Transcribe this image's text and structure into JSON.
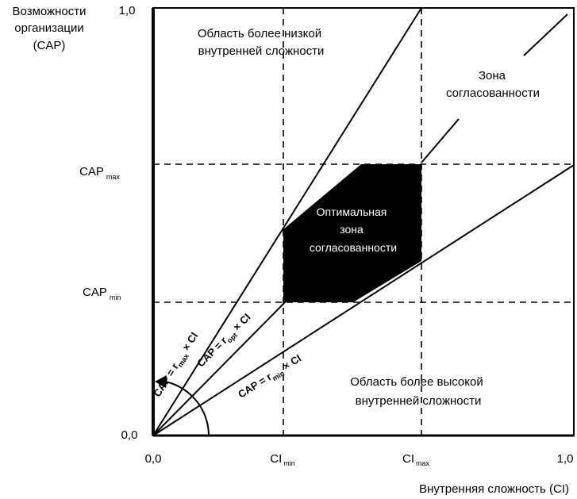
{
  "y_axis": {
    "title_lines": [
      "Возможности",
      "организации",
      "(CAP)"
    ],
    "ticks": {
      "zero": "0,0",
      "one": "1,0"
    },
    "cap_max": {
      "main": "CAP",
      "sub": "max"
    },
    "cap_min": {
      "main": "CAP",
      "sub": "min"
    }
  },
  "x_axis": {
    "title": "Внутренняя сложность (CI)",
    "ticks": {
      "zero": "0,0",
      "one": "1,0"
    },
    "ci_min": {
      "main": "CI",
      "sub": "min"
    },
    "ci_max": {
      "main": "CI",
      "sub": "max"
    }
  },
  "regions": {
    "lower_complexity": [
      "Область более низкой",
      "внутренней сложности"
    ],
    "higher_complexity": [
      "Область более высокой",
      "внутренней сложности"
    ],
    "consistency_zone": [
      "Зона",
      "согласованности"
    ],
    "optimal_zone": [
      "Оптимальная",
      "зона",
      "согласованности"
    ]
  },
  "lines": {
    "max": {
      "prefix": "CAP = r",
      "sub": "max",
      "suffix": " × CI"
    },
    "opt": {
      "prefix": "CAP = r",
      "sub": "opt",
      "suffix": " × CI"
    },
    "min": {
      "prefix": "CAP = r",
      "sub": "min",
      "suffix": " × CI"
    }
  },
  "colors": {
    "ink": "#000000",
    "paper": "#ffffff"
  }
}
